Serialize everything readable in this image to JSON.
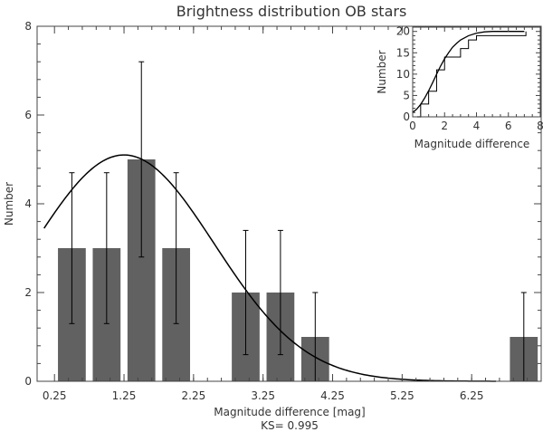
{
  "chart_data": [
    {
      "type": "bar",
      "title": "Brightness distribution OB stars",
      "xlabel": "Magnitude difference [mag]",
      "ylabel": "Number",
      "annotation": "KS= 0.995",
      "xlim": [
        0,
        7.25
      ],
      "ylim": [
        0,
        8
      ],
      "xticks": [
        "0.25",
        "1.25",
        "2.25",
        "3.25",
        "4.25",
        "5.25",
        "6.25"
      ],
      "yticks": [
        "0",
        "2",
        "4",
        "6",
        "8"
      ],
      "bar_color": "#616161",
      "x": [
        0.5,
        1.0,
        1.5,
        2.0,
        2.5,
        3.0,
        3.5,
        4.0,
        4.5,
        5.0,
        5.5,
        6.0,
        6.5,
        7.0
      ],
      "values": [
        3,
        3,
        5,
        3,
        0,
        2,
        2,
        1,
        0,
        0,
        0,
        0,
        0,
        1
      ],
      "error_bars": [
        [
          1.3,
          4.7
        ],
        [
          1.3,
          4.7
        ],
        [
          2.8,
          7.2
        ],
        [
          1.3,
          4.7
        ],
        null,
        [
          0.6,
          3.4
        ],
        [
          0.6,
          3.4
        ],
        [
          0.0,
          2.0
        ],
        null,
        null,
        null,
        null,
        null,
        [
          0.0,
          2.0
        ]
      ],
      "fit_curve": {
        "type": "gaussian",
        "amplitude": 5.1,
        "mean": 1.25,
        "sigma": 1.3,
        "x_range": [
          0.1,
          6.6
        ]
      }
    },
    {
      "type": "line",
      "subtype": "cumulative distribution (inset)",
      "xlabel": "Magnitude difference",
      "ylabel": "Number",
      "xlim": [
        0,
        8
      ],
      "ylim": [
        0,
        21
      ],
      "xticks": [
        "0",
        "2",
        "4",
        "6",
        "8"
      ],
      "yticks": [
        "0",
        "5",
        "10",
        "15",
        "20"
      ],
      "series": [
        {
          "style": "step",
          "x": [
            0,
            0.5,
            1.0,
            1.5,
            2.0,
            2.5,
            3.0,
            3.5,
            4.0,
            6.9,
            7.1
          ],
          "y": [
            0,
            3,
            6,
            11,
            14,
            14,
            16,
            18,
            19,
            19,
            20
          ]
        },
        {
          "style": "smooth",
          "x": [
            0,
            0.25,
            0.5,
            0.75,
            1.0,
            1.25,
            1.5,
            1.75,
            2.0,
            2.25,
            2.5,
            2.75,
            3.0,
            3.5,
            4.0,
            4.5,
            5.0,
            5.5,
            6.0,
            7.0
          ],
          "y": [
            1.0,
            1.8,
            2.9,
            4.4,
            6.1,
            8.0,
            10.0,
            11.9,
            13.6,
            15.0,
            16.3,
            17.2,
            18.0,
            19.0,
            19.6,
            19.9,
            20.0,
            20.0,
            20.0,
            20.0
          ]
        }
      ]
    }
  ]
}
